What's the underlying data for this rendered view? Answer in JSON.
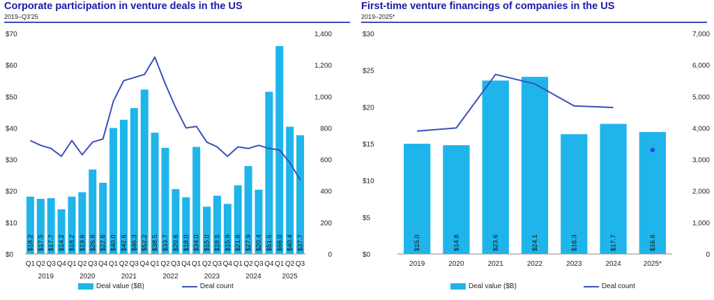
{
  "colors": {
    "bar": "#1fb5ea",
    "line": "#3b4fb8",
    "title": "#1a1aa6",
    "projection": "#2b3ff0"
  },
  "chart_data": [
    {
      "type": "bar",
      "title": "Corporate participation in venture deals in the US",
      "subtitle": "2019–Q3'25",
      "left_axis_ticks": [
        "$0",
        "$10",
        "$20",
        "$30",
        "$40",
        "$50",
        "$60",
        "$70"
      ],
      "right_axis_ticks": [
        "0",
        "200",
        "400",
        "600",
        "800",
        "1,000",
        "1,200",
        "1,400"
      ],
      "ylim": [
        0,
        70
      ],
      "y2lim": [
        0,
        1400
      ],
      "categories": [
        "Q1",
        "Q2",
        "Q3",
        "Q4",
        "Q1",
        "Q2",
        "Q3",
        "Q4",
        "Q1",
        "Q2",
        "Q3",
        "Q4",
        "Q1",
        "Q2",
        "Q3",
        "Q4",
        "Q1",
        "Q2",
        "Q3",
        "Q4",
        "Q1",
        "Q2",
        "Q3",
        "Q4",
        "Q1",
        "Q2",
        "Q3"
      ],
      "year_labels": [
        "2019",
        "2020",
        "2021",
        "2022",
        "2023",
        "2024",
        "2025"
      ],
      "series": [
        {
          "name": "Deal value ($B)",
          "type": "bar",
          "axis": "left",
          "values": [
            18.2,
            17.5,
            17.7,
            14.2,
            18.2,
            19.6,
            26.8,
            22.6,
            40.0,
            42.6,
            46.3,
            52.2,
            38.5,
            33.7,
            20.6,
            18.0,
            34.0,
            15.0,
            18.5,
            15.9,
            21.8,
            27.9,
            20.4,
            51.5,
            66.0,
            40.4,
            37.7
          ],
          "labels": [
            "$18.2",
            "$17.5",
            "$17.7",
            "$14.2",
            "$18.2",
            "$19.6",
            "$26.8",
            "$22.6",
            "$40.0",
            "$42.6",
            "$46.3",
            "$52.2",
            "$38.5",
            "$33.7",
            "$20.6",
            "$18.0",
            "$34.0",
            "$15.0",
            "$18.5",
            "$15.9",
            "$21.8",
            "$27.9",
            "$20.4",
            "$51.5",
            "$66.0",
            "$40.4",
            "$37.7"
          ]
        },
        {
          "name": "Deal count",
          "type": "line",
          "axis": "right",
          "values": [
            720,
            690,
            670,
            620,
            720,
            630,
            710,
            730,
            970,
            1100,
            1120,
            1140,
            1250,
            1080,
            930,
            800,
            810,
            710,
            680,
            620,
            680,
            670,
            690,
            670,
            660,
            580,
            470
          ]
        }
      ],
      "legend": "bottom"
    },
    {
      "type": "bar",
      "title": "First-time venture financings of companies in the US",
      "subtitle": "2019–2025*",
      "left_axis_ticks": [
        "$0",
        "$5",
        "$10",
        "$15",
        "$20",
        "$25",
        "$30"
      ],
      "right_axis_ticks": [
        "0",
        "1,000",
        "2,000",
        "3,000",
        "4,000",
        "5,000",
        "6,000",
        "7,000"
      ],
      "ylim": [
        0,
        30
      ],
      "y2lim": [
        0,
        7000
      ],
      "categories": [
        "2019",
        "2020",
        "2021",
        "2022",
        "2023",
        "2024",
        "2025*"
      ],
      "series": [
        {
          "name": "Deal value ($B)",
          "type": "bar",
          "axis": "left",
          "values": [
            15.0,
            14.8,
            23.6,
            24.1,
            16.3,
            17.7,
            16.6
          ],
          "labels": [
            "$15.0",
            "$14.8",
            "$23.6",
            "$24.1",
            "$16.3",
            "$17.7",
            "$16.6"
          ]
        },
        {
          "name": "Deal count",
          "type": "line",
          "axis": "right",
          "values": [
            3900,
            4000,
            5700,
            5400,
            4700,
            4650,
            null
          ]
        }
      ],
      "projected_count": {
        "category": "2025*",
        "value": 3300
      },
      "legend": "bottom"
    }
  ]
}
